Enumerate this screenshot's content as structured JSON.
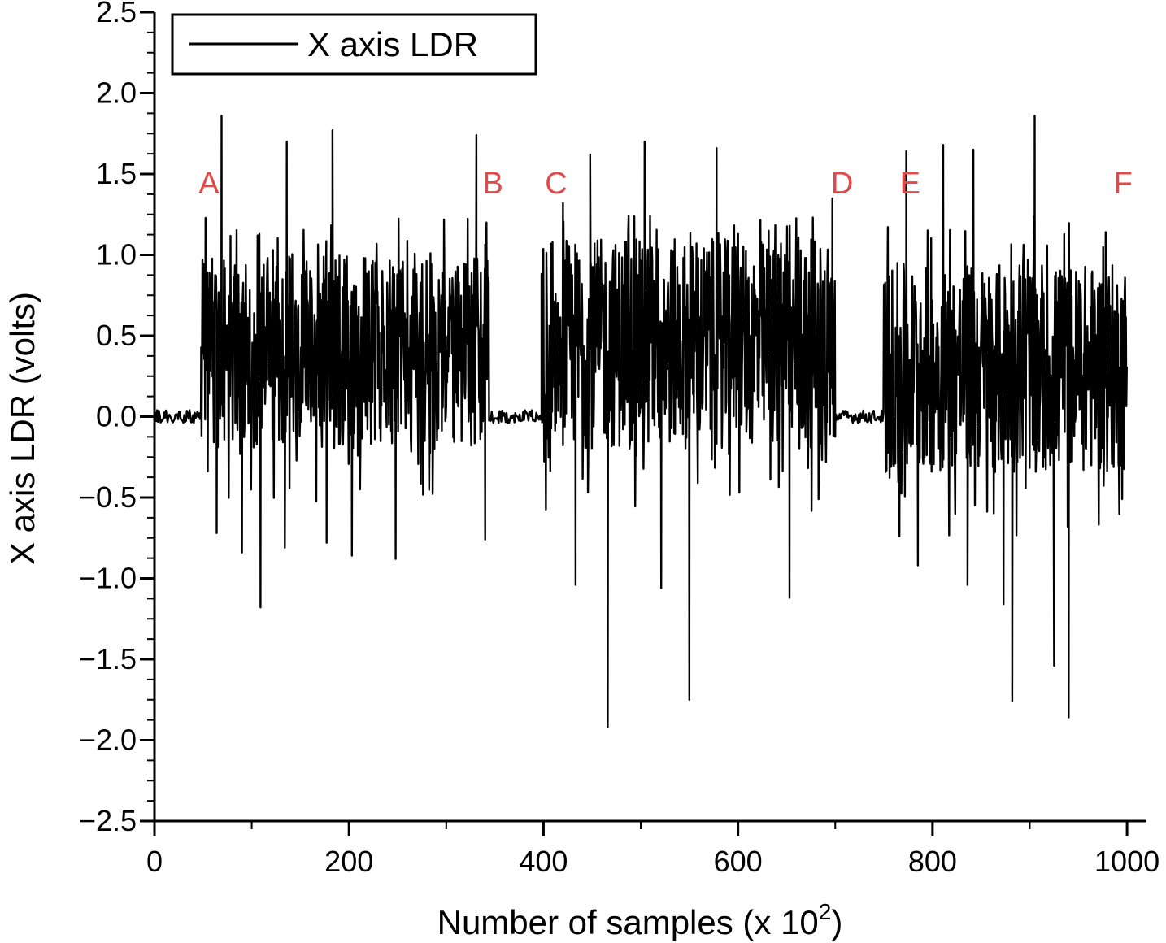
{
  "chart_data": {
    "type": "line",
    "xlabel": "Number of samples (x 10",
    "xlabel_sup": "2",
    "xlabel_close": ")",
    "ylabel": "X axis LDR (volts)",
    "xlim": [
      0,
      1020
    ],
    "ylim": [
      -2.5,
      2.5
    ],
    "x_ticks": [
      0,
      200,
      400,
      600,
      800,
      1000
    ],
    "x_tick_labels": [
      "0",
      "200",
      "400",
      "600",
      "800",
      "1000"
    ],
    "y_ticks": [
      2.5,
      2.0,
      1.5,
      1.0,
      0.5,
      0.0,
      -0.5,
      -1.0,
      -1.5,
      -2.0,
      -2.5
    ],
    "y_tick_labels": [
      "2.5",
      "2.0",
      "1.5",
      "1.0",
      "0.5",
      "0.0",
      "−0.5",
      "−1.0",
      "−1.5",
      "−2.0",
      "−2.5"
    ],
    "legend": {
      "label": "X axis LDR",
      "position": "top-left"
    },
    "grid": false,
    "line_color": "#000000",
    "marker_color": "#e04a4a",
    "markers": [
      {
        "label": "A",
        "x": 56,
        "y": 1.45
      },
      {
        "label": "B",
        "x": 348,
        "y": 1.45
      },
      {
        "label": "C",
        "x": 413,
        "y": 1.45
      },
      {
        "label": "D",
        "x": 707,
        "y": 1.45
      },
      {
        "label": "E",
        "x": 777,
        "y": 1.45
      },
      {
        "label": "F",
        "x": 996,
        "y": 1.45
      }
    ],
    "segments": [
      {
        "x_start": 0,
        "x_end": 48,
        "mode": "quiet",
        "baseline": 0.0,
        "amplitude": 0.04
      },
      {
        "x_start": 48,
        "x_end": 344,
        "mode": "active",
        "baseline": 0.4,
        "amplitude": 0.6
      },
      {
        "x_start": 344,
        "x_end": 398,
        "mode": "quiet",
        "baseline": 0.0,
        "amplitude": 0.04
      },
      {
        "x_start": 398,
        "x_end": 700,
        "mode": "active",
        "baseline": 0.45,
        "amplitude": 0.65
      },
      {
        "x_start": 700,
        "x_end": 750,
        "mode": "quiet",
        "baseline": 0.0,
        "amplitude": 0.04
      },
      {
        "x_start": 750,
        "x_end": 1000,
        "mode": "active",
        "baseline": 0.3,
        "amplitude": 0.65
      }
    ],
    "spikes": [
      {
        "x": 51,
        "y": 0.57
      },
      {
        "x": 69,
        "y": 1.86
      },
      {
        "x": 64,
        "y": -0.72
      },
      {
        "x": 90,
        "y": -0.84
      },
      {
        "x": 109,
        "y": -1.18
      },
      {
        "x": 106,
        "y": 1.12
      },
      {
        "x": 136,
        "y": 1.7
      },
      {
        "x": 134,
        "y": -0.81
      },
      {
        "x": 183,
        "y": 1.77
      },
      {
        "x": 177,
        "y": -0.78
      },
      {
        "x": 203,
        "y": -0.86
      },
      {
        "x": 248,
        "y": -0.88
      },
      {
        "x": 331,
        "y": 1.74
      },
      {
        "x": 340,
        "y": -0.76
      },
      {
        "x": 420,
        "y": 1.32
      },
      {
        "x": 433,
        "y": -1.04
      },
      {
        "x": 448,
        "y": 1.62
      },
      {
        "x": 466,
        "y": -1.92
      },
      {
        "x": 504,
        "y": 1.7
      },
      {
        "x": 521,
        "y": -1.06
      },
      {
        "x": 550,
        "y": -1.75
      },
      {
        "x": 578,
        "y": 1.66
      },
      {
        "x": 653,
        "y": -1.12
      },
      {
        "x": 697,
        "y": 1.35
      },
      {
        "x": 773,
        "y": 1.64
      },
      {
        "x": 766,
        "y": -0.74
      },
      {
        "x": 785,
        "y": -0.92
      },
      {
        "x": 811,
        "y": 1.68
      },
      {
        "x": 842,
        "y": 1.65
      },
      {
        "x": 836,
        "y": -1.04
      },
      {
        "x": 873,
        "y": -1.16
      },
      {
        "x": 882,
        "y": -1.76
      },
      {
        "x": 905,
        "y": 1.86
      },
      {
        "x": 925,
        "y": -1.54
      },
      {
        "x": 940,
        "y": -1.86
      },
      {
        "x": 978,
        "y": 1.14
      },
      {
        "x": 995,
        "y": -0.51
      }
    ]
  }
}
